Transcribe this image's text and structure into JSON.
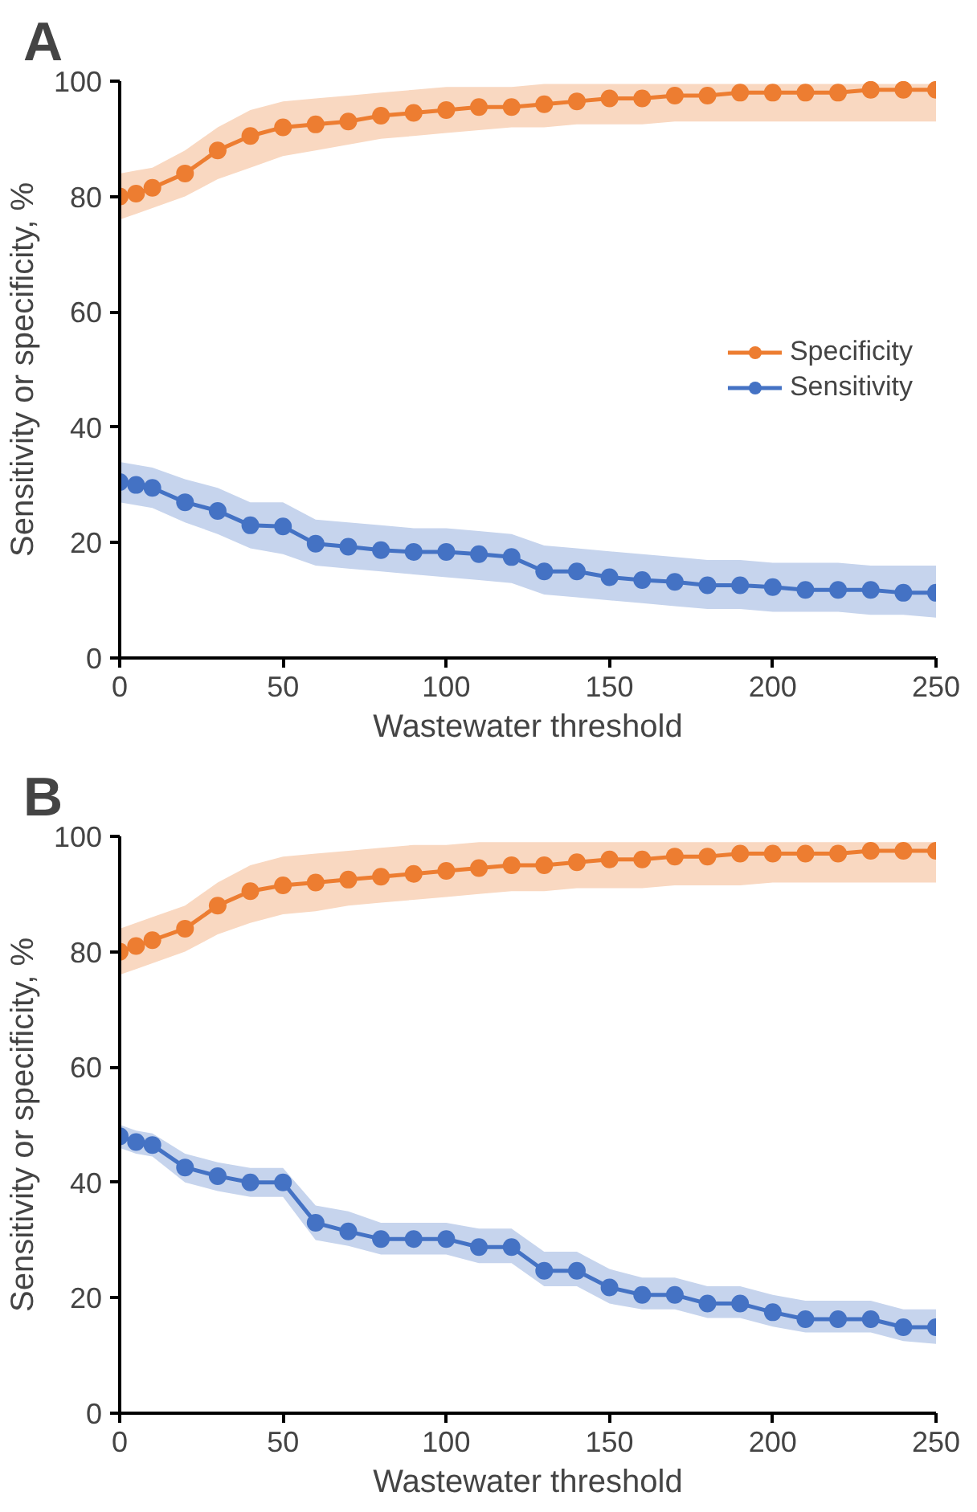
{
  "chart_data": [
    {
      "type": "line",
      "title": "A",
      "xlabel": "Wastewater threshold",
      "ylabel": "Sensitivity or specificity, %",
      "x": [
        0,
        5,
        10,
        20,
        30,
        40,
        50,
        60,
        70,
        80,
        90,
        100,
        110,
        120,
        130,
        140,
        150,
        160,
        170,
        180,
        190,
        200,
        210,
        220,
        230,
        240,
        250
      ],
      "xlim": [
        0,
        250
      ],
      "ylim": [
        0,
        100
      ],
      "xticks": [
        0,
        50,
        100,
        150,
        200,
        250
      ],
      "yticks": [
        0,
        20,
        40,
        60,
        80,
        100
      ],
      "grid": false,
      "legend": "right",
      "marker": "circle",
      "series": [
        {
          "name": "Specificity",
          "color": "#ed7d31",
          "values": [
            80,
            80.5,
            81.5,
            84,
            88,
            90.5,
            92,
            92.5,
            93,
            94,
            94.5,
            95,
            95.5,
            95.5,
            96,
            96.5,
            97,
            97,
            97.5,
            97.5,
            98,
            98,
            98,
            98,
            98.5,
            98.5,
            98.5
          ],
          "lower": [
            76,
            77,
            78,
            80,
            83,
            85,
            87,
            88,
            89,
            90,
            90.5,
            91,
            91.5,
            92,
            92,
            92.5,
            92.5,
            92.5,
            93,
            93,
            93,
            93,
            93,
            93,
            93,
            93,
            93
          ],
          "upper": [
            84,
            84.5,
            85,
            88,
            92,
            95,
            96.5,
            97,
            97.5,
            98,
            98.5,
            99,
            99,
            99,
            99.5,
            99.5,
            99.5,
            99.5,
            99.5,
            99.5,
            99.5,
            99.5,
            99.5,
            99.5,
            99.5,
            99.5,
            99.5
          ]
        },
        {
          "name": "Sensitivity",
          "color": "#4472c4",
          "values": [
            30.5,
            30,
            29.5,
            27,
            25.5,
            23,
            22.8,
            19.8,
            19.3,
            18.7,
            18.4,
            18.4,
            18,
            17.5,
            15,
            15,
            14,
            13.5,
            13.2,
            12.6,
            12.6,
            12.3,
            11.8,
            11.8,
            11.8,
            11.3,
            11.3
          ],
          "lower": [
            27,
            26.5,
            26,
            23.5,
            21.5,
            19,
            18,
            16,
            15.5,
            15,
            14.5,
            14,
            13.5,
            13,
            11,
            10.5,
            10,
            9.5,
            9,
            8.5,
            8.5,
            8,
            8,
            8,
            7.5,
            7.5,
            7
          ],
          "upper": [
            34,
            33.5,
            33,
            31,
            29.5,
            27,
            27,
            24,
            23.5,
            23,
            22.5,
            22.5,
            22,
            21.5,
            19.5,
            19,
            18.5,
            18,
            17.5,
            17,
            17,
            16.5,
            16.5,
            16.5,
            16,
            16,
            16
          ]
        }
      ]
    },
    {
      "type": "line",
      "title": "B",
      "xlabel": "Wastewater threshold",
      "ylabel": "Sensitivity or specificity, %",
      "x": [
        0,
        5,
        10,
        20,
        30,
        40,
        50,
        60,
        70,
        80,
        90,
        100,
        110,
        120,
        130,
        140,
        150,
        160,
        170,
        180,
        190,
        200,
        210,
        220,
        230,
        240,
        250
      ],
      "xlim": [
        0,
        250
      ],
      "ylim": [
        0,
        100
      ],
      "xticks": [
        0,
        50,
        100,
        150,
        200,
        250
      ],
      "yticks": [
        0,
        20,
        40,
        60,
        80,
        100
      ],
      "grid": false,
      "marker": "circle",
      "series": [
        {
          "color": "#ed7d31",
          "values": [
            80,
            81,
            82,
            84,
            88,
            90.5,
            91.5,
            92,
            92.5,
            93,
            93.5,
            94,
            94.5,
            95,
            95,
            95.5,
            96,
            96,
            96.5,
            96.5,
            97,
            97,
            97,
            97,
            97.5,
            97.5,
            97.5
          ],
          "lower": [
            76,
            77,
            78,
            80,
            83,
            85,
            86.5,
            87,
            88,
            88.5,
            89,
            89.5,
            90,
            90.5,
            90.5,
            91,
            91,
            91,
            91.5,
            91.5,
            91.5,
            92,
            92,
            92,
            92,
            92,
            92
          ],
          "upper": [
            84,
            85,
            86,
            88,
            92,
            95,
            96.5,
            97,
            97.5,
            98,
            98.5,
            98.5,
            99,
            99,
            99,
            99,
            99,
            99,
            99,
            99,
            99,
            99,
            99,
            99,
            99,
            99,
            99
          ]
        },
        {
          "color": "#4472c4",
          "values": [
            48,
            47,
            46.5,
            42.6,
            41.1,
            40,
            40,
            33,
            31.5,
            30.2,
            30.2,
            30.2,
            28.8,
            28.8,
            24.7,
            24.7,
            21.8,
            20.5,
            20.5,
            19,
            19,
            17.5,
            16.3,
            16.3,
            16.3,
            14.9,
            14.9
          ],
          "lower": [
            46,
            45,
            44.5,
            40,
            38.5,
            37.5,
            37.5,
            30,
            29,
            27.5,
            27.5,
            27.5,
            26,
            26,
            22,
            22,
            19,
            18,
            18,
            16.5,
            16.5,
            15,
            14,
            14,
            14,
            12.5,
            12
          ],
          "upper": [
            50,
            49,
            48.5,
            45,
            43.5,
            42.5,
            42.5,
            36,
            35,
            33,
            33,
            33,
            32,
            32,
            28,
            28,
            25,
            23.5,
            23.5,
            22,
            22,
            20.5,
            19.5,
            19.5,
            19.5,
            18,
            18
          ]
        }
      ]
    }
  ]
}
